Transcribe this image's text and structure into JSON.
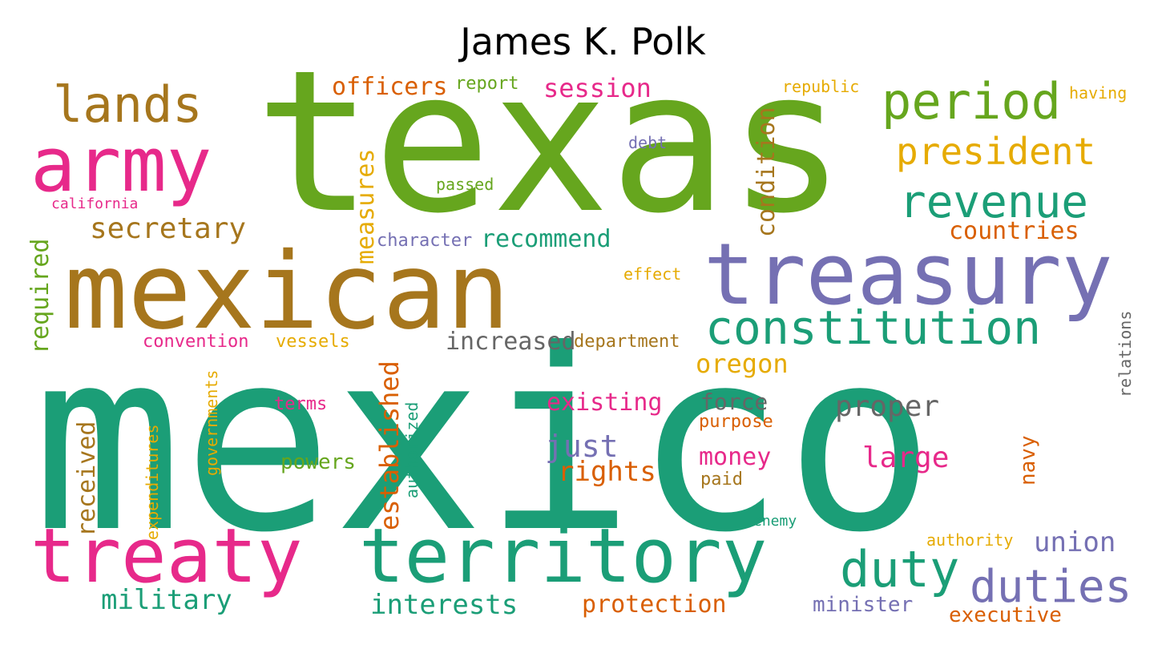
{
  "title": "James K. Polk",
  "colors": {
    "green_dark": "#1b9e77",
    "green_light": "#66a61e",
    "orange": "#d95f02",
    "purple": "#7570b3",
    "pink": "#e7298a",
    "brown": "#a6761d",
    "gold": "#e6ab02",
    "gray": "#666666"
  },
  "words": {
    "texas": "texas",
    "mexico": "mexico",
    "mexican": "mexican",
    "treasury": "treasury",
    "territory": "territory",
    "treaty": "treaty",
    "army": "army",
    "lands": "lands",
    "period": "period",
    "president": "president",
    "revenue": "revenue",
    "constitution": "constitution",
    "duty": "duty",
    "duties": "duties",
    "secretary": "secretary",
    "military": "military",
    "interests": "interests",
    "protection": "protection",
    "executive": "executive",
    "minister": "minister",
    "union": "union",
    "authority": "authority",
    "enemy": "enemy",
    "paid": "paid",
    "navy": "navy",
    "large": "large",
    "proper": "proper",
    "force": "force",
    "purpose": "purpose",
    "money": "money",
    "rights": "rights",
    "just": "just",
    "existing": "existing",
    "powers": "powers",
    "terms": "terms",
    "oregon": "oregon",
    "increased": "increased",
    "department": "department",
    "convention": "convention",
    "vessels": "vessels",
    "effect": "effect",
    "character": "character",
    "recommend": "recommend",
    "countries": "countries",
    "passed": "passed",
    "debt": "debt",
    "california": "california",
    "officers": "officers",
    "report": "report",
    "session": "session",
    "republic": "republic",
    "having": "having",
    "required": "required",
    "measures": "measures",
    "condition": "condition",
    "received": "received",
    "expenditures": "expenditures",
    "governments": "governments",
    "established": "established",
    "authorized": "authorized",
    "relations": "relations"
  }
}
